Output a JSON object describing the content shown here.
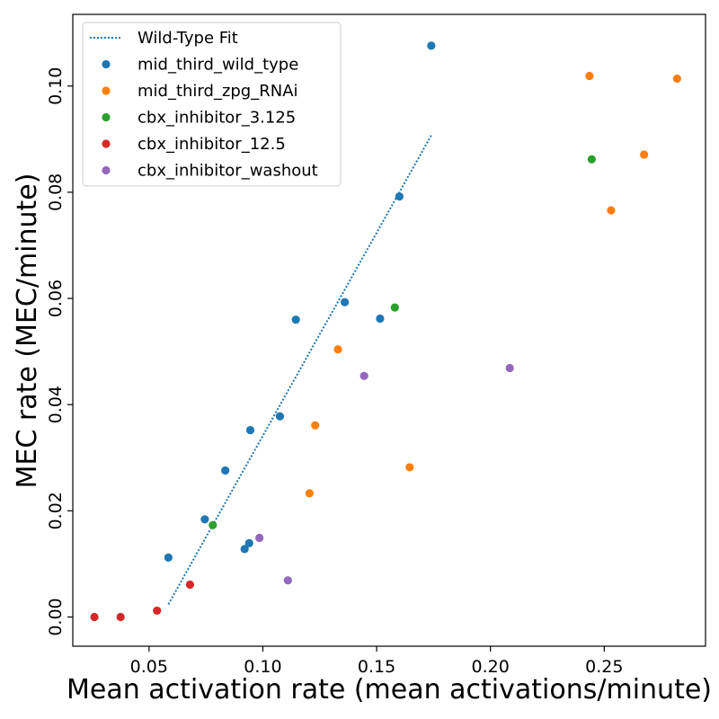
{
  "chart_data": {
    "type": "scatter",
    "title": "",
    "xlabel": "Mean activation rate (mean activations/minute)",
    "ylabel": "MEC rate (MEC/minute)",
    "xlim": [
      0.0165,
      0.2945
    ],
    "ylim": [
      -0.0055,
      0.1135
    ],
    "x_ticks": [
      0.05,
      0.1,
      0.15,
      0.2,
      0.25
    ],
    "x_tick_labels": [
      "0.05",
      "0.10",
      "0.15",
      "0.20",
      "0.25"
    ],
    "y_ticks": [
      0.0,
      0.02,
      0.04,
      0.06,
      0.08,
      0.1
    ],
    "y_tick_labels": [
      "0.00",
      "0.02",
      "0.04",
      "0.06",
      "0.08",
      "0.10"
    ],
    "grid": false,
    "legend_position": "top-left",
    "fit": {
      "name": "Wild-Type Fit",
      "color": "#1f77b4",
      "style": "dotted",
      "x": [
        0.0585,
        0.1741
      ],
      "y": [
        0.0024,
        0.0908
      ]
    },
    "series": [
      {
        "name": "mid_third_wild_type",
        "color": "#1f77b4",
        "points": [
          [
            0.0585,
            0.0112
          ],
          [
            0.0745,
            0.0184
          ],
          [
            0.0835,
            0.0276
          ],
          [
            0.092,
            0.0128
          ],
          [
            0.094,
            0.0139
          ],
          [
            0.0945,
            0.0352
          ],
          [
            0.1075,
            0.0378
          ],
          [
            0.1145,
            0.056
          ],
          [
            0.136,
            0.0593
          ],
          [
            0.1515,
            0.0562
          ],
          [
            0.16,
            0.0792
          ],
          [
            0.174,
            0.1076
          ]
        ]
      },
      {
        "name": "mid_third_zpg_RNAi",
        "color": "#ff7f0e",
        "points": [
          [
            0.1205,
            0.0233
          ],
          [
            0.123,
            0.0361
          ],
          [
            0.133,
            0.0504
          ],
          [
            0.1645,
            0.0282
          ],
          [
            0.2435,
            0.1019
          ],
          [
            0.253,
            0.0766
          ],
          [
            0.2675,
            0.0871
          ],
          [
            0.282,
            0.1014
          ]
        ]
      },
      {
        "name": "cbx_inhibitor_3.125",
        "color": "#2ca02c",
        "points": [
          [
            0.078,
            0.0173
          ],
          [
            0.158,
            0.0583
          ],
          [
            0.2445,
            0.0862
          ]
        ]
      },
      {
        "name": "cbx_inhibitor_12.5",
        "color": "#d62728",
        "points": [
          [
            0.026,
            0.0
          ],
          [
            0.0375,
            0.0
          ],
          [
            0.0535,
            0.0012
          ],
          [
            0.068,
            0.0061
          ]
        ]
      },
      {
        "name": "cbx_inhibitor_washout",
        "color": "#9467bd",
        "points": [
          [
            0.0985,
            0.0149
          ],
          [
            0.111,
            0.0069
          ],
          [
            0.1445,
            0.0454
          ],
          [
            0.2085,
            0.0469
          ]
        ]
      }
    ]
  }
}
